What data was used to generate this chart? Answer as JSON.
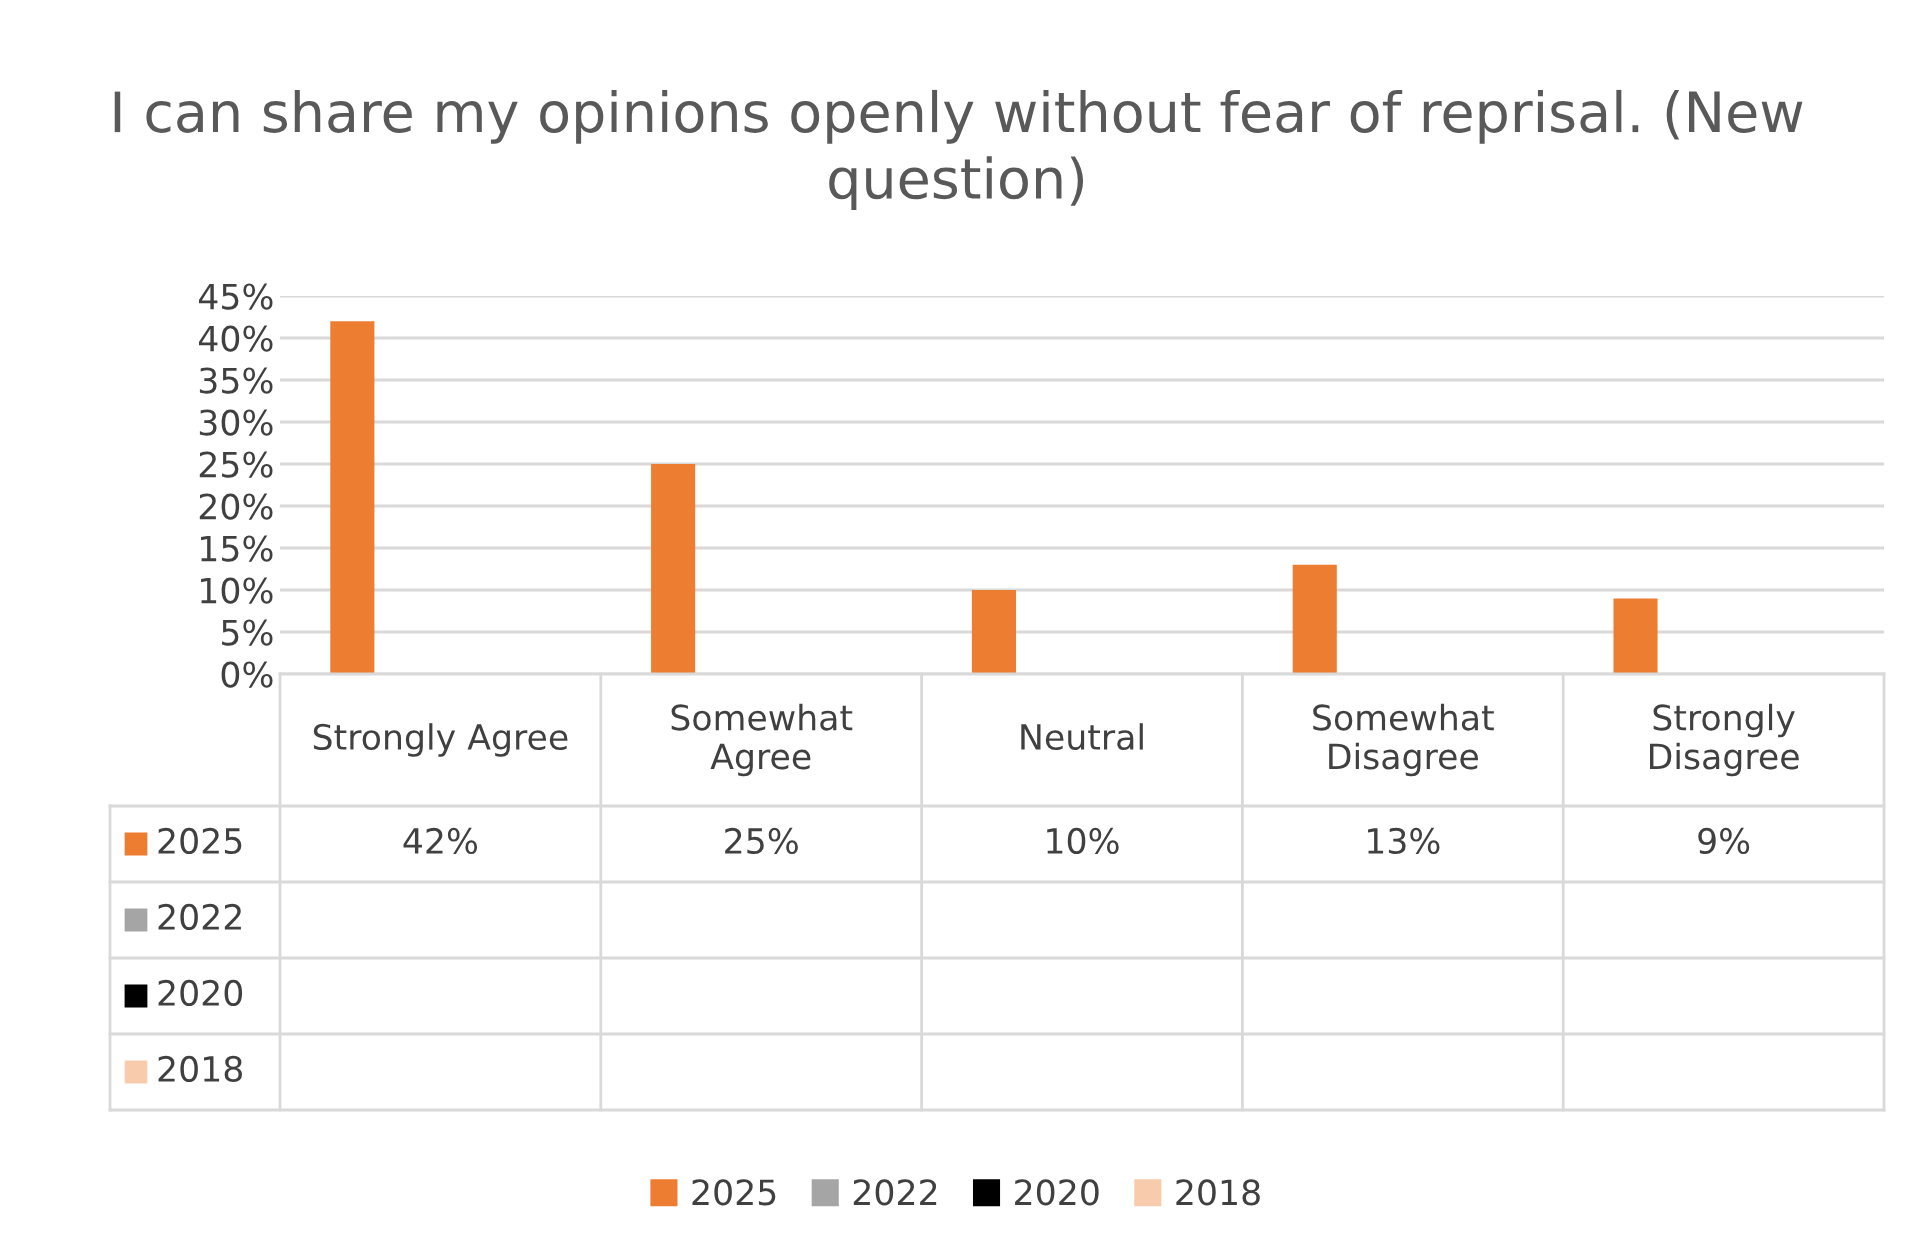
{
  "chart_data": {
    "type": "bar",
    "title": "I can share my opinions openly without fear of reprisal. (New question)",
    "categories": [
      "Strongly Agree",
      "Somewhat Agree",
      "Neutral",
      "Somewhat Disagree",
      "Strongly Disagree"
    ],
    "series": [
      {
        "name": "2025",
        "color": "#ed7d31",
        "values": [
          42,
          25,
          10,
          13,
          9
        ],
        "value_labels": [
          "42%",
          "25%",
          "10%",
          "13%",
          "9%"
        ]
      },
      {
        "name": "2022",
        "color": "#a5a5a5",
        "values": [
          null,
          null,
          null,
          null,
          null
        ]
      },
      {
        "name": "2020",
        "color": "#000000",
        "values": [
          null,
          null,
          null,
          null,
          null
        ]
      },
      {
        "name": "2018",
        "color": "#f8cbad",
        "values": [
          null,
          null,
          null,
          null,
          null
        ]
      }
    ],
    "ylim": [
      0,
      45
    ],
    "yticks": [
      {
        "value": 0,
        "label": "0%"
      },
      {
        "value": 5,
        "label": "5%"
      },
      {
        "value": 10,
        "label": "10%"
      },
      {
        "value": 15,
        "label": "15%"
      },
      {
        "value": 20,
        "label": "20%"
      },
      {
        "value": 25,
        "label": "25%"
      },
      {
        "value": 30,
        "label": "30%"
      },
      {
        "value": 35,
        "label": "35%"
      },
      {
        "value": 40,
        "label": "40%"
      },
      {
        "value": 45,
        "label": "45%"
      }
    ],
    "grid": "y",
    "legend": "bottom"
  }
}
